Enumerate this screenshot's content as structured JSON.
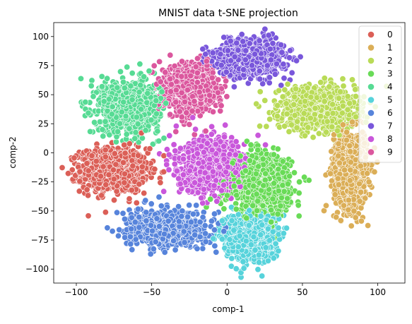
{
  "chart_data": {
    "type": "scatter",
    "title": "MNIST data t-SNE projection",
    "xlabel": "comp-1",
    "ylabel": "comp-2",
    "xlim": [
      -115,
      118
    ],
    "ylim": [
      -112,
      112
    ],
    "x_ticks": [
      -100,
      -50,
      0,
      50,
      100
    ],
    "y_ticks": [
      -100,
      -75,
      -50,
      -25,
      0,
      25,
      50,
      75,
      100
    ],
    "grid": false,
    "legend_position": "top-right",
    "legend_entries": [
      "0",
      "1",
      "2",
      "3",
      "4",
      "5",
      "6",
      "7",
      "8",
      "9"
    ],
    "colors": [
      "#db5f57",
      "#dbae57",
      "#b9db57",
      "#69db57",
      "#57db94",
      "#57d3db",
      "#5784db",
      "#7957db",
      "#c957db",
      "#db579e"
    ],
    "series": [
      {
        "name": "0",
        "cluster_center": [
          -75,
          -15
        ],
        "spread": [
          20,
          17
        ],
        "count": 1000
      },
      {
        "name": "1",
        "cluster_center": [
          82,
          -15
        ],
        "spread": [
          10,
          30
        ],
        "count": 1000
      },
      {
        "name": "2",
        "cluster_center": [
          60,
          38
        ],
        "spread": [
          23,
          16
        ],
        "count": 1000
      },
      {
        "name": "3",
        "cluster_center": [
          22,
          -28
        ],
        "spread": [
          18,
          23
        ],
        "count": 1000
      },
      {
        "name": "4",
        "cluster_center": [
          -65,
          40
        ],
        "spread": [
          18,
          20
        ],
        "count": 1000
      },
      {
        "name": "5",
        "cluster_center": [
          15,
          -72
        ],
        "spread": [
          15,
          18
        ],
        "count": 1000
      },
      {
        "name": "6",
        "cluster_center": [
          -40,
          -65
        ],
        "spread": [
          22,
          13
        ],
        "count": 1000
      },
      {
        "name": "7",
        "cluster_center": [
          15,
          82
        ],
        "spread": [
          20,
          14
        ],
        "count": 1000
      },
      {
        "name": "8",
        "cluster_center": [
          -10,
          -12
        ],
        "spread": [
          20,
          20
        ],
        "count": 1000
      },
      {
        "name": "9",
        "cluster_center": [
          -25,
          55
        ],
        "spread": [
          15,
          18
        ],
        "count": 1000
      }
    ]
  }
}
